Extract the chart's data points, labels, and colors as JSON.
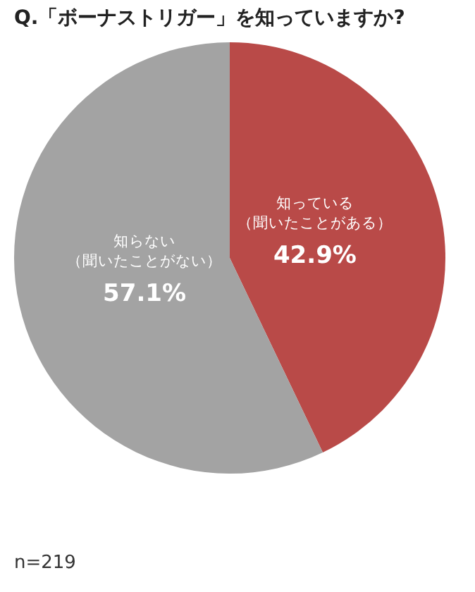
{
  "chart_data": {
    "type": "pie",
    "title": "Q.「ボーナストリガー」を知っていますか?",
    "categories": [
      "知っている（聞いたことがある）",
      "知らない（聞いたことがない）"
    ],
    "values": [
      42.9,
      57.1
    ],
    "colors": [
      "#b94a48",
      "#a3a3a3"
    ],
    "value_labels": [
      "42.9%",
      "57.1%"
    ],
    "annotations": [
      "n=219"
    ]
  }
}
